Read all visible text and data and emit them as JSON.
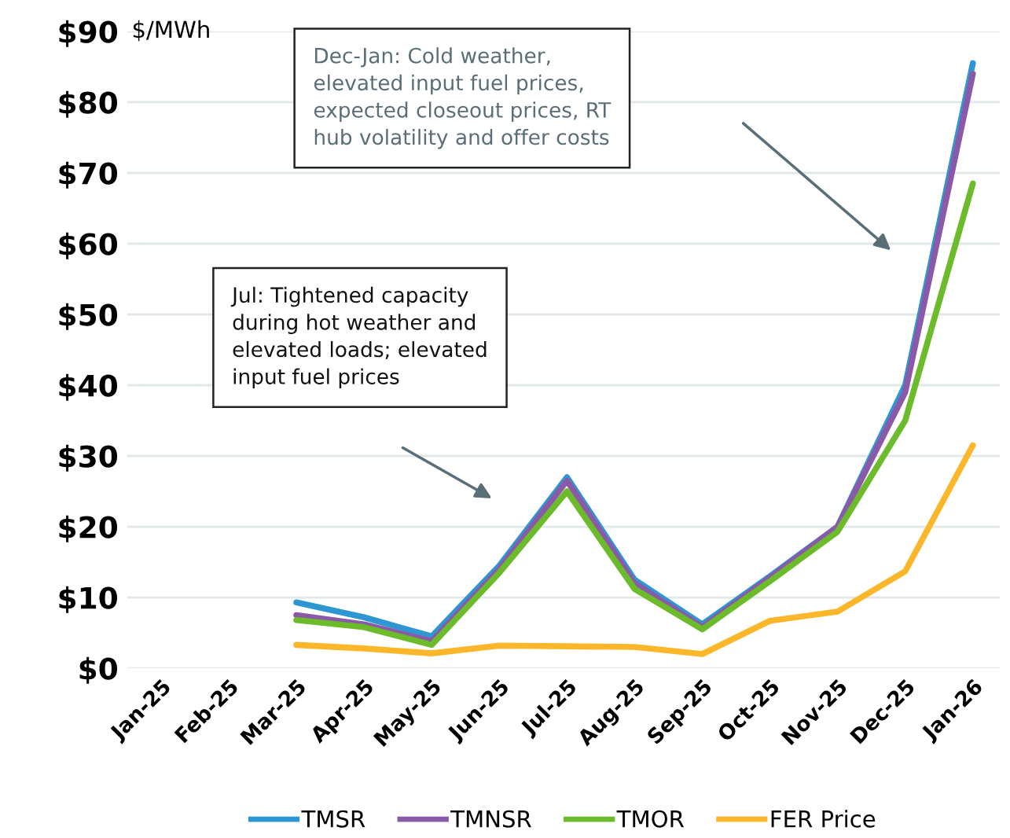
{
  "chart_data": {
    "type": "line",
    "ylabel": "$/MWh",
    "categories": [
      "Jan-25",
      "Feb-25",
      "Mar-25",
      "Apr-25",
      "May-25",
      "Jun-25",
      "Jul-25",
      "Aug-25",
      "Sep-25",
      "Oct-25",
      "Nov-25",
      "Dec-25",
      "Jan-26"
    ],
    "series": [
      {
        "name": "TMSR",
        "color": "#2e96d2",
        "values": [
          null,
          null,
          9.3,
          7.2,
          4.5,
          14.5,
          27,
          12.5,
          6.2,
          13,
          20,
          40,
          85.5
        ]
      },
      {
        "name": "TMNSR",
        "color": "#8a5aa8",
        "values": [
          null,
          null,
          7.5,
          6.2,
          3.8,
          14,
          26.5,
          12,
          5.8,
          12.8,
          20,
          39,
          84
        ]
      },
      {
        "name": "TMOR",
        "color": "#6cbb2a",
        "values": [
          null,
          null,
          6.8,
          5.8,
          3.3,
          13.5,
          25,
          11.2,
          5.5,
          12.3,
          19.3,
          35,
          68.5
        ]
      },
      {
        "name": "FER Price",
        "color": "#fbb62a",
        "values": [
          null,
          null,
          3.3,
          2.8,
          2.1,
          3.2,
          3.1,
          3,
          2,
          6.7,
          8,
          13.7,
          31.5
        ]
      }
    ],
    "ylim": [
      0,
      90
    ],
    "yticks": [
      {
        "value": 0,
        "label": "$0"
      },
      {
        "value": 10,
        "label": "$10"
      },
      {
        "value": 20,
        "label": "$20"
      },
      {
        "value": 30,
        "label": "$30"
      },
      {
        "value": 40,
        "label": "$40"
      },
      {
        "value": 50,
        "label": "$50"
      },
      {
        "value": 60,
        "label": "$60"
      },
      {
        "value": 70,
        "label": "$70"
      },
      {
        "value": 80,
        "label": "$80"
      },
      {
        "value": 90,
        "label": "$90"
      }
    ],
    "grid": "y",
    "legend": "bottom",
    "marker": "none",
    "line_style": "solid",
    "annotations": [
      "Dec-Jan: Cold weather,\nelevated input fuel prices,\nexpected closeout prices, RT\nhub volatility and offer costs",
      "Jul: Tightened capacity\nduring hot weather and\nelevated loads; elevated\ninput fuel prices"
    ]
  }
}
